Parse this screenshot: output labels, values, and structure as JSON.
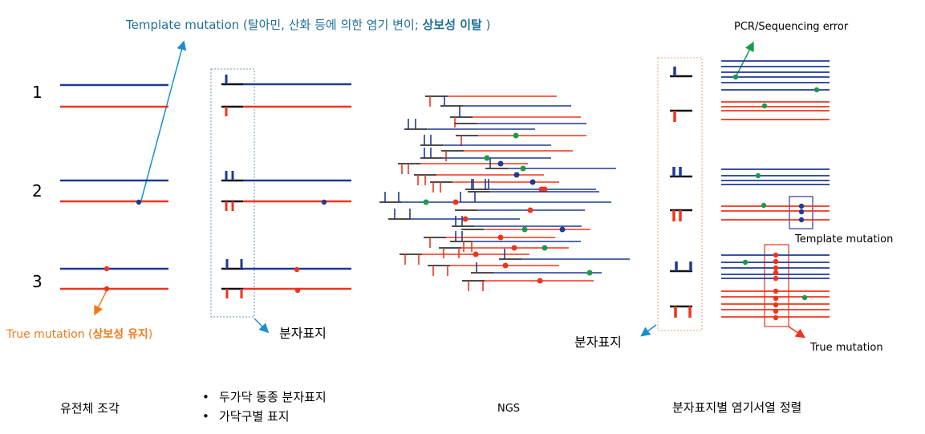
{
  "colors": {
    "blue": "#1f3a93",
    "red": "#f0341c",
    "tag": "#111111",
    "green": "#1a9a4a",
    "orange": "#f07a1a",
    "cyan": "#1a8fd0",
    "title_blue": "#1f6f9a"
  },
  "top_annotation": {
    "prefix": "Template mutation (",
    "middle": "탈아민, 산화 등에 의한 염기 변이; ",
    "bold": "상보성 이탈",
    "suffix": " )"
  },
  "panel1": {
    "pair_numbers": [
      "1",
      "2",
      "3"
    ],
    "true_mutation": {
      "prefix": "True mutation (",
      "bold": "상보성 유지",
      "suffix": ")"
    }
  },
  "panel2": {
    "tag_label": "분자표지"
  },
  "panel4": {
    "tag_label": "분자표지",
    "pcr_error": "PCR/Sequencing error",
    "template_mutation": "Template mutation",
    "true_mutation": "True mutation"
  },
  "bottom_labels": {
    "fragment": "유전체 조각",
    "bullets": [
      "두가닥 동종 분자표지",
      "가닥구별 표지"
    ],
    "ngs": "NGS",
    "alignment": "분자표지별 염기서열 정렬"
  }
}
